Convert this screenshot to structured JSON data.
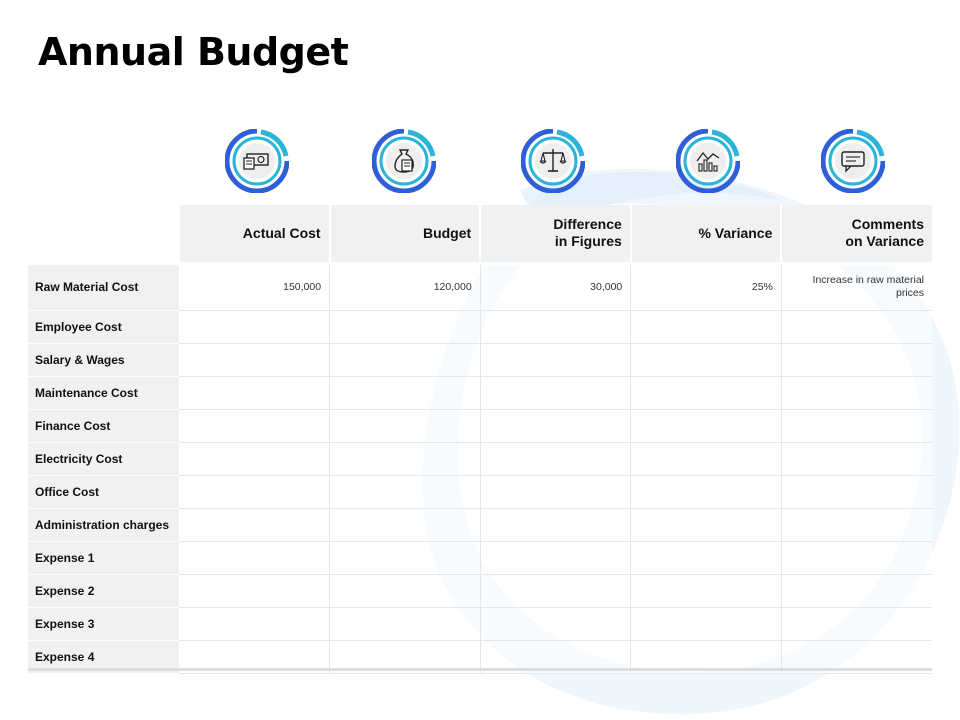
{
  "title": "Annual Budget",
  "accent_colors": {
    "ring_dark": "#2f5fd6",
    "ring_light": "#29b4d8"
  },
  "icons": [
    "cash-icon",
    "money-bag-icon",
    "balance-scale-icon",
    "chart-icon",
    "speech-bubble-icon"
  ],
  "table": {
    "columns": [
      "Actual Cost",
      "Budget",
      "Difference in Figures",
      "% Variance",
      "Comments on Variance"
    ],
    "columns_line1": [
      "Actual Cost",
      "Budget",
      "Difference",
      "% Variance",
      "Comments"
    ],
    "columns_line2": [
      "",
      "",
      "in Figures",
      "",
      "on Variance"
    ],
    "rows": [
      {
        "label": "Raw Material Cost",
        "actual": "150,000",
        "budget": "120,000",
        "difference": "30,000",
        "variance": "25%",
        "comment": "Increase in raw material prices"
      },
      {
        "label": "Employee Cost",
        "actual": "",
        "budget": "",
        "difference": "",
        "variance": "",
        "comment": ""
      },
      {
        "label": "Salary & Wages",
        "actual": "",
        "budget": "",
        "difference": "",
        "variance": "",
        "comment": ""
      },
      {
        "label": "Maintenance Cost",
        "actual": "",
        "budget": "",
        "difference": "",
        "variance": "",
        "comment": ""
      },
      {
        "label": "Finance Cost",
        "actual": "",
        "budget": "",
        "difference": "",
        "variance": "",
        "comment": ""
      },
      {
        "label": "Electricity Cost",
        "actual": "",
        "budget": "",
        "difference": "",
        "variance": "",
        "comment": ""
      },
      {
        "label": "Office Cost",
        "actual": "",
        "budget": "",
        "difference": "",
        "variance": "",
        "comment": ""
      },
      {
        "label": "Administration charges",
        "actual": "",
        "budget": "",
        "difference": "",
        "variance": "",
        "comment": ""
      },
      {
        "label": "Expense 1",
        "actual": "",
        "budget": "",
        "difference": "",
        "variance": "",
        "comment": ""
      },
      {
        "label": "Expense 2",
        "actual": "",
        "budget": "",
        "difference": "",
        "variance": "",
        "comment": ""
      },
      {
        "label": "Expense 3",
        "actual": "",
        "budget": "",
        "difference": "",
        "variance": "",
        "comment": ""
      },
      {
        "label": "Expense 4",
        "actual": "",
        "budget": "",
        "difference": "",
        "variance": "",
        "comment": ""
      }
    ]
  }
}
